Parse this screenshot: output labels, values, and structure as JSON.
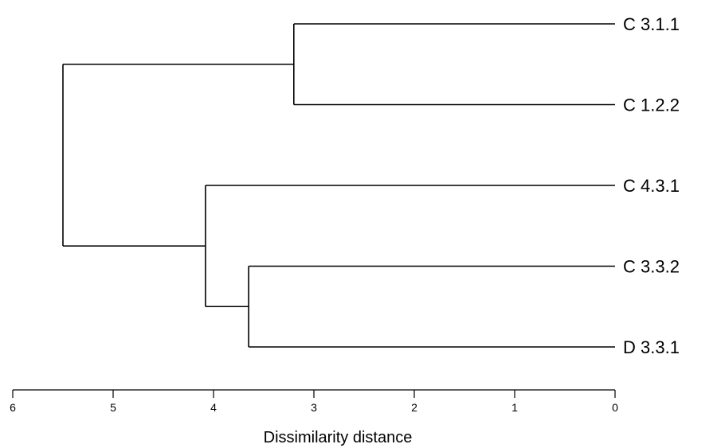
{
  "chart_data": {
    "type": "dendrogram",
    "orientation": "horizontal",
    "xlabel": "Dissimilarity distance",
    "xlim": [
      6,
      0
    ],
    "ticks": [
      6,
      5,
      4,
      3,
      2,
      1,
      0
    ],
    "leaves": [
      "C 3.1.1",
      "C 1.2.2",
      "C 4.3.1",
      "C 3.3.2",
      "D 3.3.1"
    ],
    "merges": [
      {
        "id": "m1",
        "children": [
          "C 3.1.1",
          "C 1.2.2"
        ],
        "height": 3.2
      },
      {
        "id": "m2",
        "children": [
          "C 3.3.2",
          "D 3.3.1"
        ],
        "height": 3.65
      },
      {
        "id": "m3",
        "children": [
          "C 4.3.1",
          "m2"
        ],
        "height": 4.08
      },
      {
        "id": "m4",
        "children": [
          "m1",
          "m3"
        ],
        "height": 5.5
      }
    ]
  }
}
